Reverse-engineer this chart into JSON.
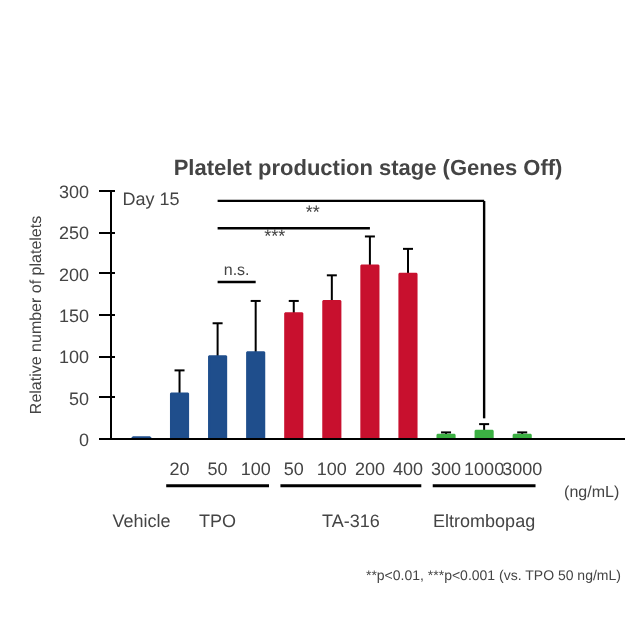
{
  "chart_data": {
    "type": "bar",
    "title": "Platelet production stage (Genes Off)",
    "ylabel": "Relative number of platelets",
    "categories": [
      null,
      "20",
      "50",
      "100",
      "50",
      "100",
      "200",
      "400",
      "300",
      "1000",
      "3000"
    ],
    "values": [
      2,
      55,
      100,
      105,
      152,
      167,
      210,
      200,
      5,
      10,
      5
    ],
    "colors": [
      "#1f4e8c",
      "#1f4e8c",
      "#1f4e8c",
      "#1f4e8c",
      "#c8102e",
      "#c8102e",
      "#c8102e",
      "#c8102e",
      "#3cb043",
      "#3cb043",
      "#3cb043"
    ],
    "errors": [
      null,
      [
        55,
        83
      ],
      [
        100,
        140
      ],
      [
        105,
        167
      ],
      [
        152,
        167
      ],
      [
        167,
        198
      ],
      [
        210,
        245
      ],
      [
        200,
        230
      ],
      [
        5,
        8
      ],
      [
        10,
        18
      ],
      [
        5,
        8
      ]
    ],
    "ylim": [
      0,
      300
    ],
    "yticks": [
      0,
      50,
      100,
      150,
      200,
      250,
      300
    ],
    "annotations": [
      "Day 15",
      "n.s.",
      "***",
      "**",
      "Vehicle",
      "TPO",
      "TA-316",
      "Eltrombopag",
      "(ng/mL)",
      "**p<0.01, ***p<0.001 (vs. TPO 50 ng/mL)"
    ]
  }
}
